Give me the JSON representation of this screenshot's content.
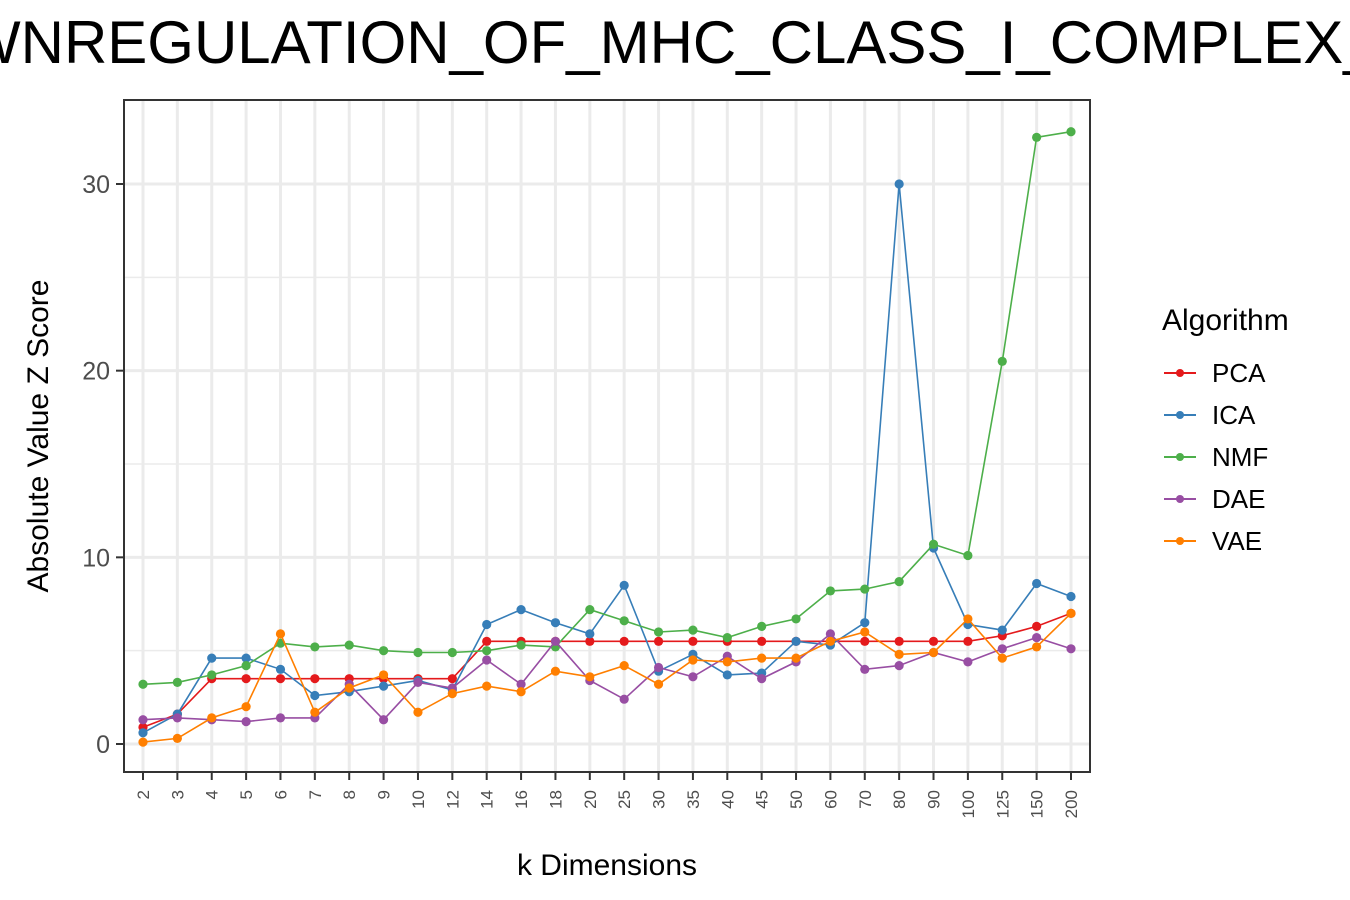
{
  "chart_data": {
    "type": "line",
    "title": "WNREGULATION_OF_MHC_CLASS_I_COMPLEX_CE",
    "xlabel": "k Dimensions",
    "ylabel": "Absolute Value Z Score",
    "categories": [
      "2",
      "3",
      "4",
      "5",
      "6",
      "7",
      "8",
      "9",
      "10",
      "12",
      "14",
      "16",
      "18",
      "20",
      "25",
      "30",
      "35",
      "40",
      "45",
      "50",
      "60",
      "70",
      "80",
      "90",
      "100",
      "125",
      "150",
      "200"
    ],
    "ylim": [
      -1.5,
      34.5
    ],
    "yticks": [
      0,
      10,
      20,
      30
    ],
    "grid": true,
    "legend_title": "Algorithm",
    "legend_position": "right",
    "series": [
      {
        "name": "PCA",
        "color": "#E41A1C",
        "values": [
          0.9,
          1.6,
          3.5,
          3.5,
          3.5,
          3.5,
          3.5,
          3.5,
          3.5,
          3.5,
          5.5,
          5.5,
          5.5,
          5.5,
          5.5,
          5.5,
          5.5,
          5.5,
          5.5,
          5.5,
          5.5,
          5.5,
          5.5,
          5.5,
          5.5,
          5.8,
          6.3,
          7.0
        ]
      },
      {
        "name": "ICA",
        "color": "#377EB8",
        "values": [
          0.6,
          1.6,
          4.6,
          4.6,
          4.0,
          2.6,
          2.8,
          3.1,
          3.4,
          2.9,
          6.4,
          7.2,
          6.5,
          5.9,
          8.5,
          3.9,
          4.8,
          3.7,
          3.8,
          5.5,
          5.3,
          6.5,
          30.0,
          10.5,
          6.4,
          6.1,
          8.6,
          7.9
        ]
      },
      {
        "name": "NMF",
        "color": "#4DAF4A",
        "values": [
          3.2,
          3.3,
          3.7,
          4.2,
          5.4,
          5.2,
          5.3,
          5.0,
          4.9,
          4.9,
          5.0,
          5.3,
          5.2,
          7.2,
          6.6,
          6.0,
          6.1,
          5.7,
          6.3,
          6.7,
          8.2,
          8.3,
          8.7,
          10.7,
          10.1,
          20.5,
          32.5,
          32.8
        ]
      },
      {
        "name": "DAE",
        "color": "#984EA3",
        "values": [
          1.3,
          1.4,
          1.3,
          1.2,
          1.4,
          1.4,
          3.2,
          1.3,
          3.3,
          3.0,
          4.5,
          3.2,
          5.5,
          3.4,
          2.4,
          4.1,
          3.6,
          4.7,
          3.5,
          4.4,
          5.9,
          4.0,
          4.2,
          4.9,
          4.4,
          5.1,
          5.7,
          5.1
        ]
      },
      {
        "name": "VAE",
        "color": "#FF7F00",
        "values": [
          0.1,
          0.3,
          1.4,
          2.0,
          5.9,
          1.7,
          3.0,
          3.7,
          1.7,
          2.7,
          3.1,
          2.8,
          3.9,
          3.6,
          4.2,
          3.2,
          4.5,
          4.4,
          4.6,
          4.6,
          5.5,
          6.0,
          4.8,
          4.9,
          6.7,
          4.6,
          5.2,
          7.0
        ]
      }
    ]
  }
}
